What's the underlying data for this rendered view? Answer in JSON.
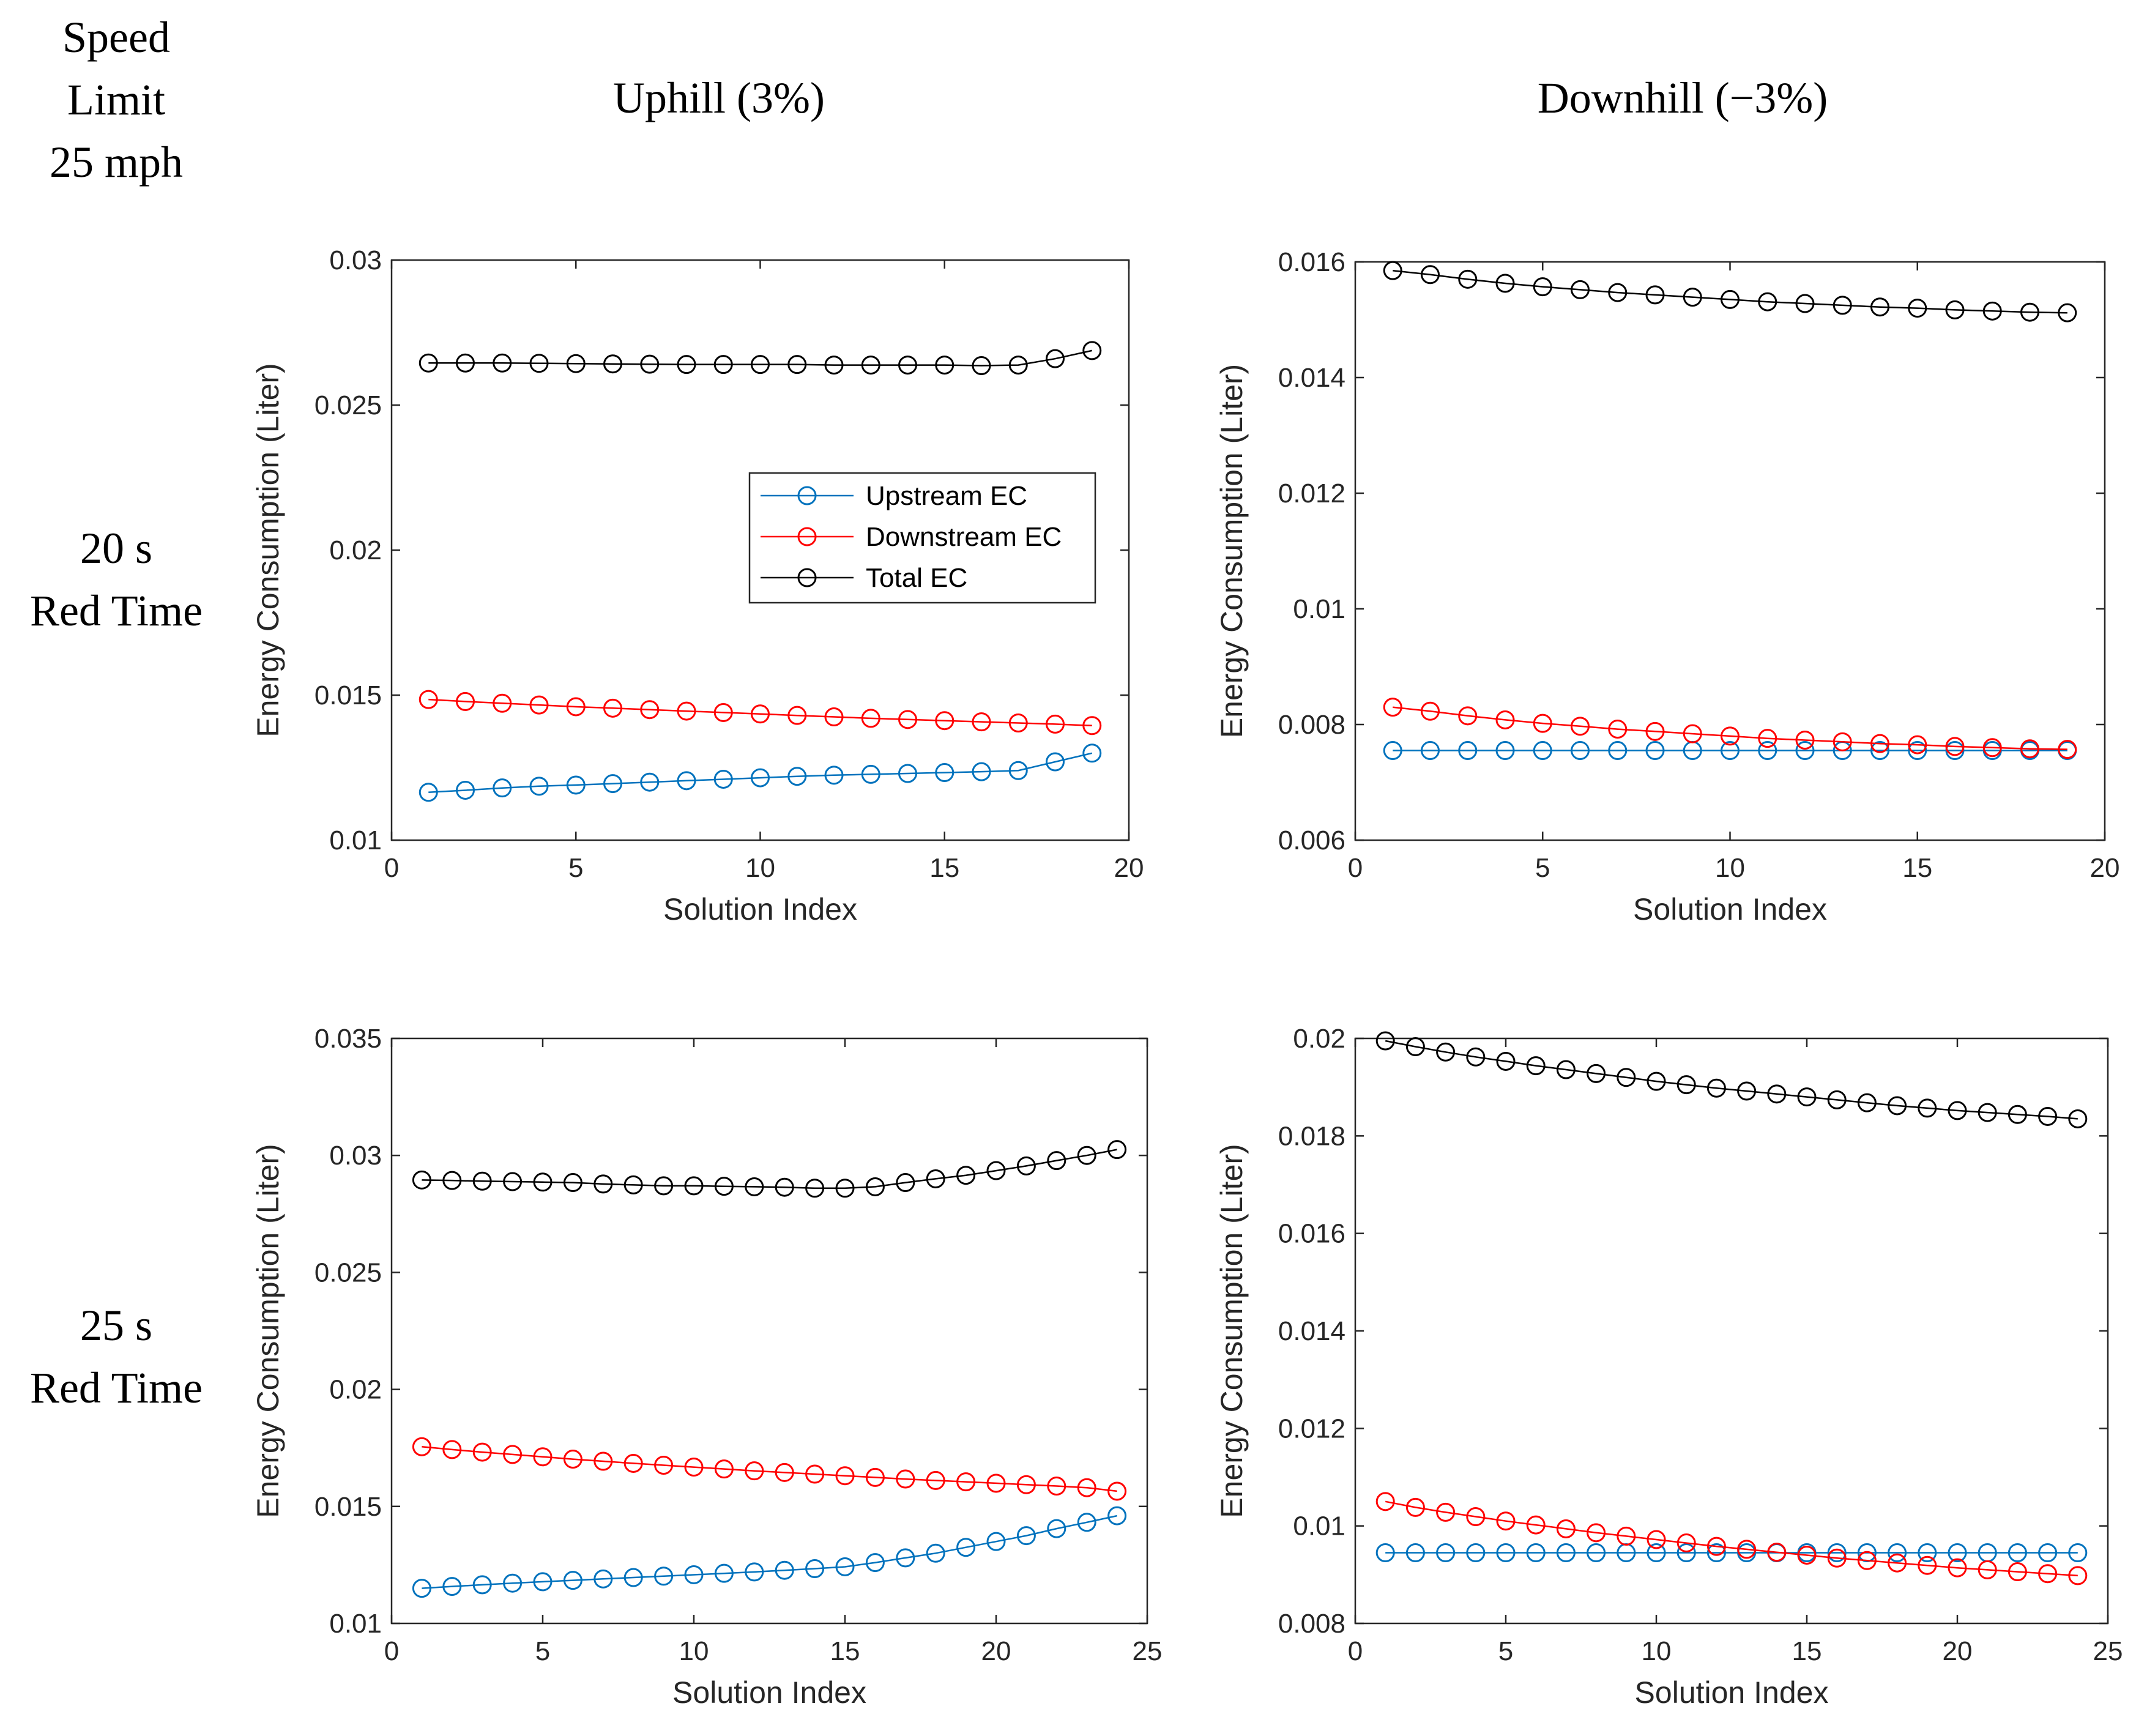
{
  "header": {
    "corner": [
      "Speed",
      "Limit",
      "25 mph"
    ],
    "columns": [
      "Uphill (3%)",
      "Downhill (−3%)"
    ],
    "rows": [
      [
        "20 s",
        "Red Time"
      ],
      [
        "25 s",
        "Red Time"
      ]
    ]
  },
  "legend": {
    "entries": [
      "Upstream EC",
      "Downstream EC",
      "Total EC"
    ]
  },
  "colors": {
    "upstream": "#0072BD",
    "downstream": "#FF0000",
    "total": "#000000",
    "axis": "#262626"
  },
  "chart_data": [
    {
      "id": "uphill-20s",
      "type": "line",
      "xlabel": "Solution Index",
      "ylabel": "Energy Consumption (Liter)",
      "xlim": [
        0,
        20
      ],
      "ylim": [
        0.01,
        0.03
      ],
      "xticks": [
        0,
        5,
        10,
        15,
        20
      ],
      "xtick_labels": [
        "0",
        "5",
        "10",
        "15",
        "20"
      ],
      "yticks": [
        0.01,
        0.015,
        0.02,
        0.025,
        0.03
      ],
      "ytick_labels": [
        "0.01",
        "0.015",
        "0.02",
        "0.025",
        "0.03"
      ],
      "legend_position": "center-right",
      "x": [
        1,
        2,
        3,
        4,
        5,
        6,
        7,
        8,
        9,
        10,
        11,
        12,
        13,
        14,
        15,
        16,
        17,
        18,
        19
      ],
      "series": [
        {
          "name": "Upstream EC",
          "values": [
            0.01165,
            0.01172,
            0.0118,
            0.01186,
            0.0119,
            0.01195,
            0.012,
            0.01205,
            0.0121,
            0.01215,
            0.0122,
            0.01224,
            0.01227,
            0.0123,
            0.01233,
            0.01236,
            0.0124,
            0.0127,
            0.013
          ]
        },
        {
          "name": "Downstream EC",
          "values": [
            0.01485,
            0.01478,
            0.01472,
            0.01466,
            0.0146,
            0.01455,
            0.0145,
            0.01445,
            0.0144,
            0.01435,
            0.0143,
            0.01425,
            0.0142,
            0.01416,
            0.01412,
            0.01408,
            0.01404,
            0.014,
            0.01395
          ]
        },
        {
          "name": "Total EC",
          "values": [
            0.02645,
            0.02645,
            0.02645,
            0.02644,
            0.02643,
            0.02642,
            0.02641,
            0.0264,
            0.0264,
            0.0264,
            0.0264,
            0.02638,
            0.02638,
            0.02638,
            0.02638,
            0.02636,
            0.02638,
            0.0266,
            0.02688
          ]
        }
      ]
    },
    {
      "id": "downhill-20s",
      "type": "line",
      "xlabel": "Solution Index",
      "ylabel": "Energy Consumption (Liter)",
      "xlim": [
        0,
        20
      ],
      "ylim": [
        0.006,
        0.016
      ],
      "xticks": [
        0,
        5,
        10,
        15,
        20
      ],
      "xtick_labels": [
        "0",
        "5",
        "10",
        "15",
        "20"
      ],
      "yticks": [
        0.006,
        0.008,
        0.01,
        0.012,
        0.014,
        0.016
      ],
      "ytick_labels": [
        "0.006",
        "0.008",
        "0.01",
        "0.012",
        "0.014",
        "0.016"
      ],
      "x": [
        1,
        2,
        3,
        4,
        5,
        6,
        7,
        8,
        9,
        10,
        11,
        12,
        13,
        14,
        15,
        16,
        17,
        18,
        19
      ],
      "series": [
        {
          "name": "Upstream EC",
          "values": [
            0.00755,
            0.00755,
            0.00755,
            0.00755,
            0.00755,
            0.00755,
            0.00755,
            0.00755,
            0.00755,
            0.00755,
            0.00755,
            0.00755,
            0.00755,
            0.00755,
            0.00755,
            0.00755,
            0.00755,
            0.00755,
            0.00755
          ]
        },
        {
          "name": "Downstream EC",
          "values": [
            0.0083,
            0.00823,
            0.00815,
            0.00808,
            0.00802,
            0.00797,
            0.00792,
            0.00788,
            0.00784,
            0.0078,
            0.00776,
            0.00773,
            0.0077,
            0.00767,
            0.00765,
            0.00762,
            0.0076,
            0.00758,
            0.00757
          ]
        },
        {
          "name": "Total EC",
          "values": [
            0.01585,
            0.01578,
            0.0157,
            0.01563,
            0.01557,
            0.01552,
            0.01547,
            0.01543,
            0.01539,
            0.01535,
            0.01531,
            0.01528,
            0.01525,
            0.01522,
            0.0152,
            0.01517,
            0.01515,
            0.01513,
            0.01512
          ]
        }
      ]
    },
    {
      "id": "uphill-25s",
      "type": "line",
      "xlabel": "Solution Index",
      "ylabel": "Energy Consumption (Liter)",
      "xlim": [
        0,
        25
      ],
      "ylim": [
        0.01,
        0.035
      ],
      "xticks": [
        0,
        5,
        10,
        15,
        20,
        25
      ],
      "xtick_labels": [
        "0",
        "5",
        "10",
        "15",
        "20",
        "25"
      ],
      "yticks": [
        0.01,
        0.015,
        0.02,
        0.025,
        0.03,
        0.035
      ],
      "ytick_labels": [
        "0.01",
        "0.015",
        "0.02",
        "0.025",
        "0.03",
        "0.035"
      ],
      "x": [
        1,
        2,
        3,
        4,
        5,
        6,
        7,
        8,
        9,
        10,
        11,
        12,
        13,
        14,
        15,
        16,
        17,
        18,
        19,
        20,
        21,
        22,
        23,
        24
      ],
      "series": [
        {
          "name": "Upstream EC",
          "values": [
            0.0115,
            0.01158,
            0.01165,
            0.01172,
            0.01178,
            0.01184,
            0.0119,
            0.01196,
            0.01202,
            0.01208,
            0.01214,
            0.0122,
            0.01227,
            0.01234,
            0.01242,
            0.0126,
            0.0128,
            0.013,
            0.01325,
            0.0135,
            0.01375,
            0.01405,
            0.01432,
            0.0146
          ]
        },
        {
          "name": "Downstream EC",
          "values": [
            0.01755,
            0.01743,
            0.01732,
            0.01722,
            0.01712,
            0.01702,
            0.01693,
            0.01684,
            0.01676,
            0.01668,
            0.0166,
            0.01652,
            0.01645,
            0.01638,
            0.01631,
            0.01624,
            0.01617,
            0.01611,
            0.01605,
            0.01599,
            0.01593,
            0.01587,
            0.0158,
            0.01565
          ]
        },
        {
          "name": "Total EC",
          "values": [
            0.02895,
            0.02893,
            0.0289,
            0.02888,
            0.02886,
            0.02884,
            0.02878,
            0.02874,
            0.0287,
            0.0287,
            0.02868,
            0.02866,
            0.02864,
            0.0286,
            0.0286,
            0.02866,
            0.02884,
            0.029,
            0.02915,
            0.02935,
            0.02955,
            0.02978,
            0.03,
            0.03025
          ]
        }
      ]
    },
    {
      "id": "downhill-25s",
      "type": "line",
      "xlabel": "Solution Index",
      "ylabel": "Energy Consumption (Liter)",
      "xlim": [
        0,
        25
      ],
      "ylim": [
        0.008,
        0.02
      ],
      "xticks": [
        0,
        5,
        10,
        15,
        20,
        25
      ],
      "xtick_labels": [
        "0",
        "5",
        "10",
        "15",
        "20",
        "25"
      ],
      "yticks": [
        0.008,
        0.01,
        0.012,
        0.014,
        0.016,
        0.018,
        0.02
      ],
      "ytick_labels": [
        "0.008",
        "0.01",
        "0.012",
        "0.014",
        "0.016",
        "0.018",
        "0.02"
      ],
      "x": [
        1,
        2,
        3,
        4,
        5,
        6,
        7,
        8,
        9,
        10,
        11,
        12,
        13,
        14,
        15,
        16,
        17,
        18,
        19,
        20,
        21,
        22,
        23,
        24
      ],
      "series": [
        {
          "name": "Upstream EC",
          "values": [
            0.00945,
            0.00945,
            0.00945,
            0.00945,
            0.00945,
            0.00945,
            0.00945,
            0.00945,
            0.00945,
            0.00945,
            0.00945,
            0.00945,
            0.00945,
            0.00945,
            0.00945,
            0.00945,
            0.00945,
            0.00945,
            0.00945,
            0.00945,
            0.00945,
            0.00945,
            0.00945,
            0.00945
          ]
        },
        {
          "name": "Downstream EC",
          "values": [
            0.0105,
            0.01038,
            0.01028,
            0.01019,
            0.0101,
            0.01002,
            0.00994,
            0.00986,
            0.00979,
            0.00972,
            0.00965,
            0.00958,
            0.00952,
            0.00946,
            0.0094,
            0.00934,
            0.00929,
            0.00924,
            0.00919,
            0.00914,
            0.0091,
            0.00906,
            0.00902,
            0.00898
          ]
        },
        {
          "name": "Total EC",
          "values": [
            0.01995,
            0.01983,
            0.01972,
            0.01962,
            0.01953,
            0.01944,
            0.01936,
            0.01928,
            0.0192,
            0.01912,
            0.01905,
            0.01898,
            0.01892,
            0.01886,
            0.0188,
            0.01874,
            0.01868,
            0.01862,
            0.01857,
            0.01852,
            0.01848,
            0.01844,
            0.0184,
            0.01835
          ]
        }
      ]
    }
  ]
}
